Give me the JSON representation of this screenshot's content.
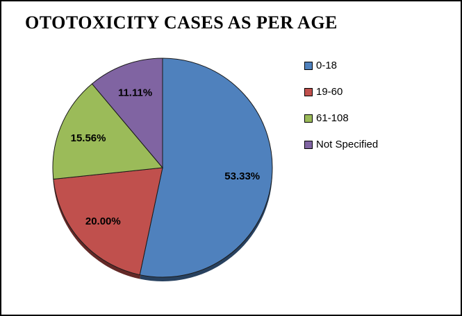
{
  "title": "OTOTOXICITY CASES AS PER AGE",
  "chart_data": {
    "type": "pie",
    "title": "OTOTOXICITY CASES AS PER AGE",
    "categories": [
      "0-18",
      "19-60",
      "61-108",
      "Not Specified"
    ],
    "values": [
      53.33,
      20.0,
      15.56,
      11.11
    ],
    "value_labels": [
      "53.33%",
      "20.00%",
      "15.56%",
      "11.11%"
    ],
    "colors": [
      "#4f81bd",
      "#c0504d",
      "#9bbb59",
      "#8064a2"
    ],
    "shadow_colors": [
      "#28415f",
      "#632927",
      "#50611f",
      "#413253"
    ],
    "start_angle_deg": 0,
    "direction": "clockwise",
    "legend_position": "right",
    "units": "%"
  }
}
